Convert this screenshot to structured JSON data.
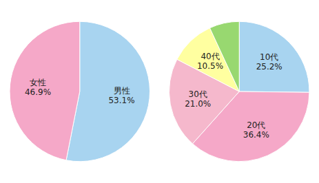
{
  "chart_data": [
    {
      "type": "pie",
      "categories": [
        "男性",
        "女性"
      ],
      "values": [
        53.1,
        46.9
      ],
      "colors": [
        "#a8d4f0",
        "#f5a8c8"
      ],
      "data_labels": true,
      "value_labels": [
        "53.1%",
        "46.9%"
      ]
    },
    {
      "type": "pie",
      "categories": [
        "10代",
        "20代",
        "30代",
        "40代",
        null
      ],
      "values": [
        25.2,
        36.4,
        21.0,
        10.5,
        6.9
      ],
      "colors": [
        "#a8d4f0",
        "#f5a8c8",
        "#f5b8cc",
        "#ffffa0",
        "#98d870"
      ],
      "data_labels": true,
      "value_labels": [
        "25.2%",
        "36.4%",
        "21.0%",
        "10.5%",
        null
      ]
    }
  ]
}
